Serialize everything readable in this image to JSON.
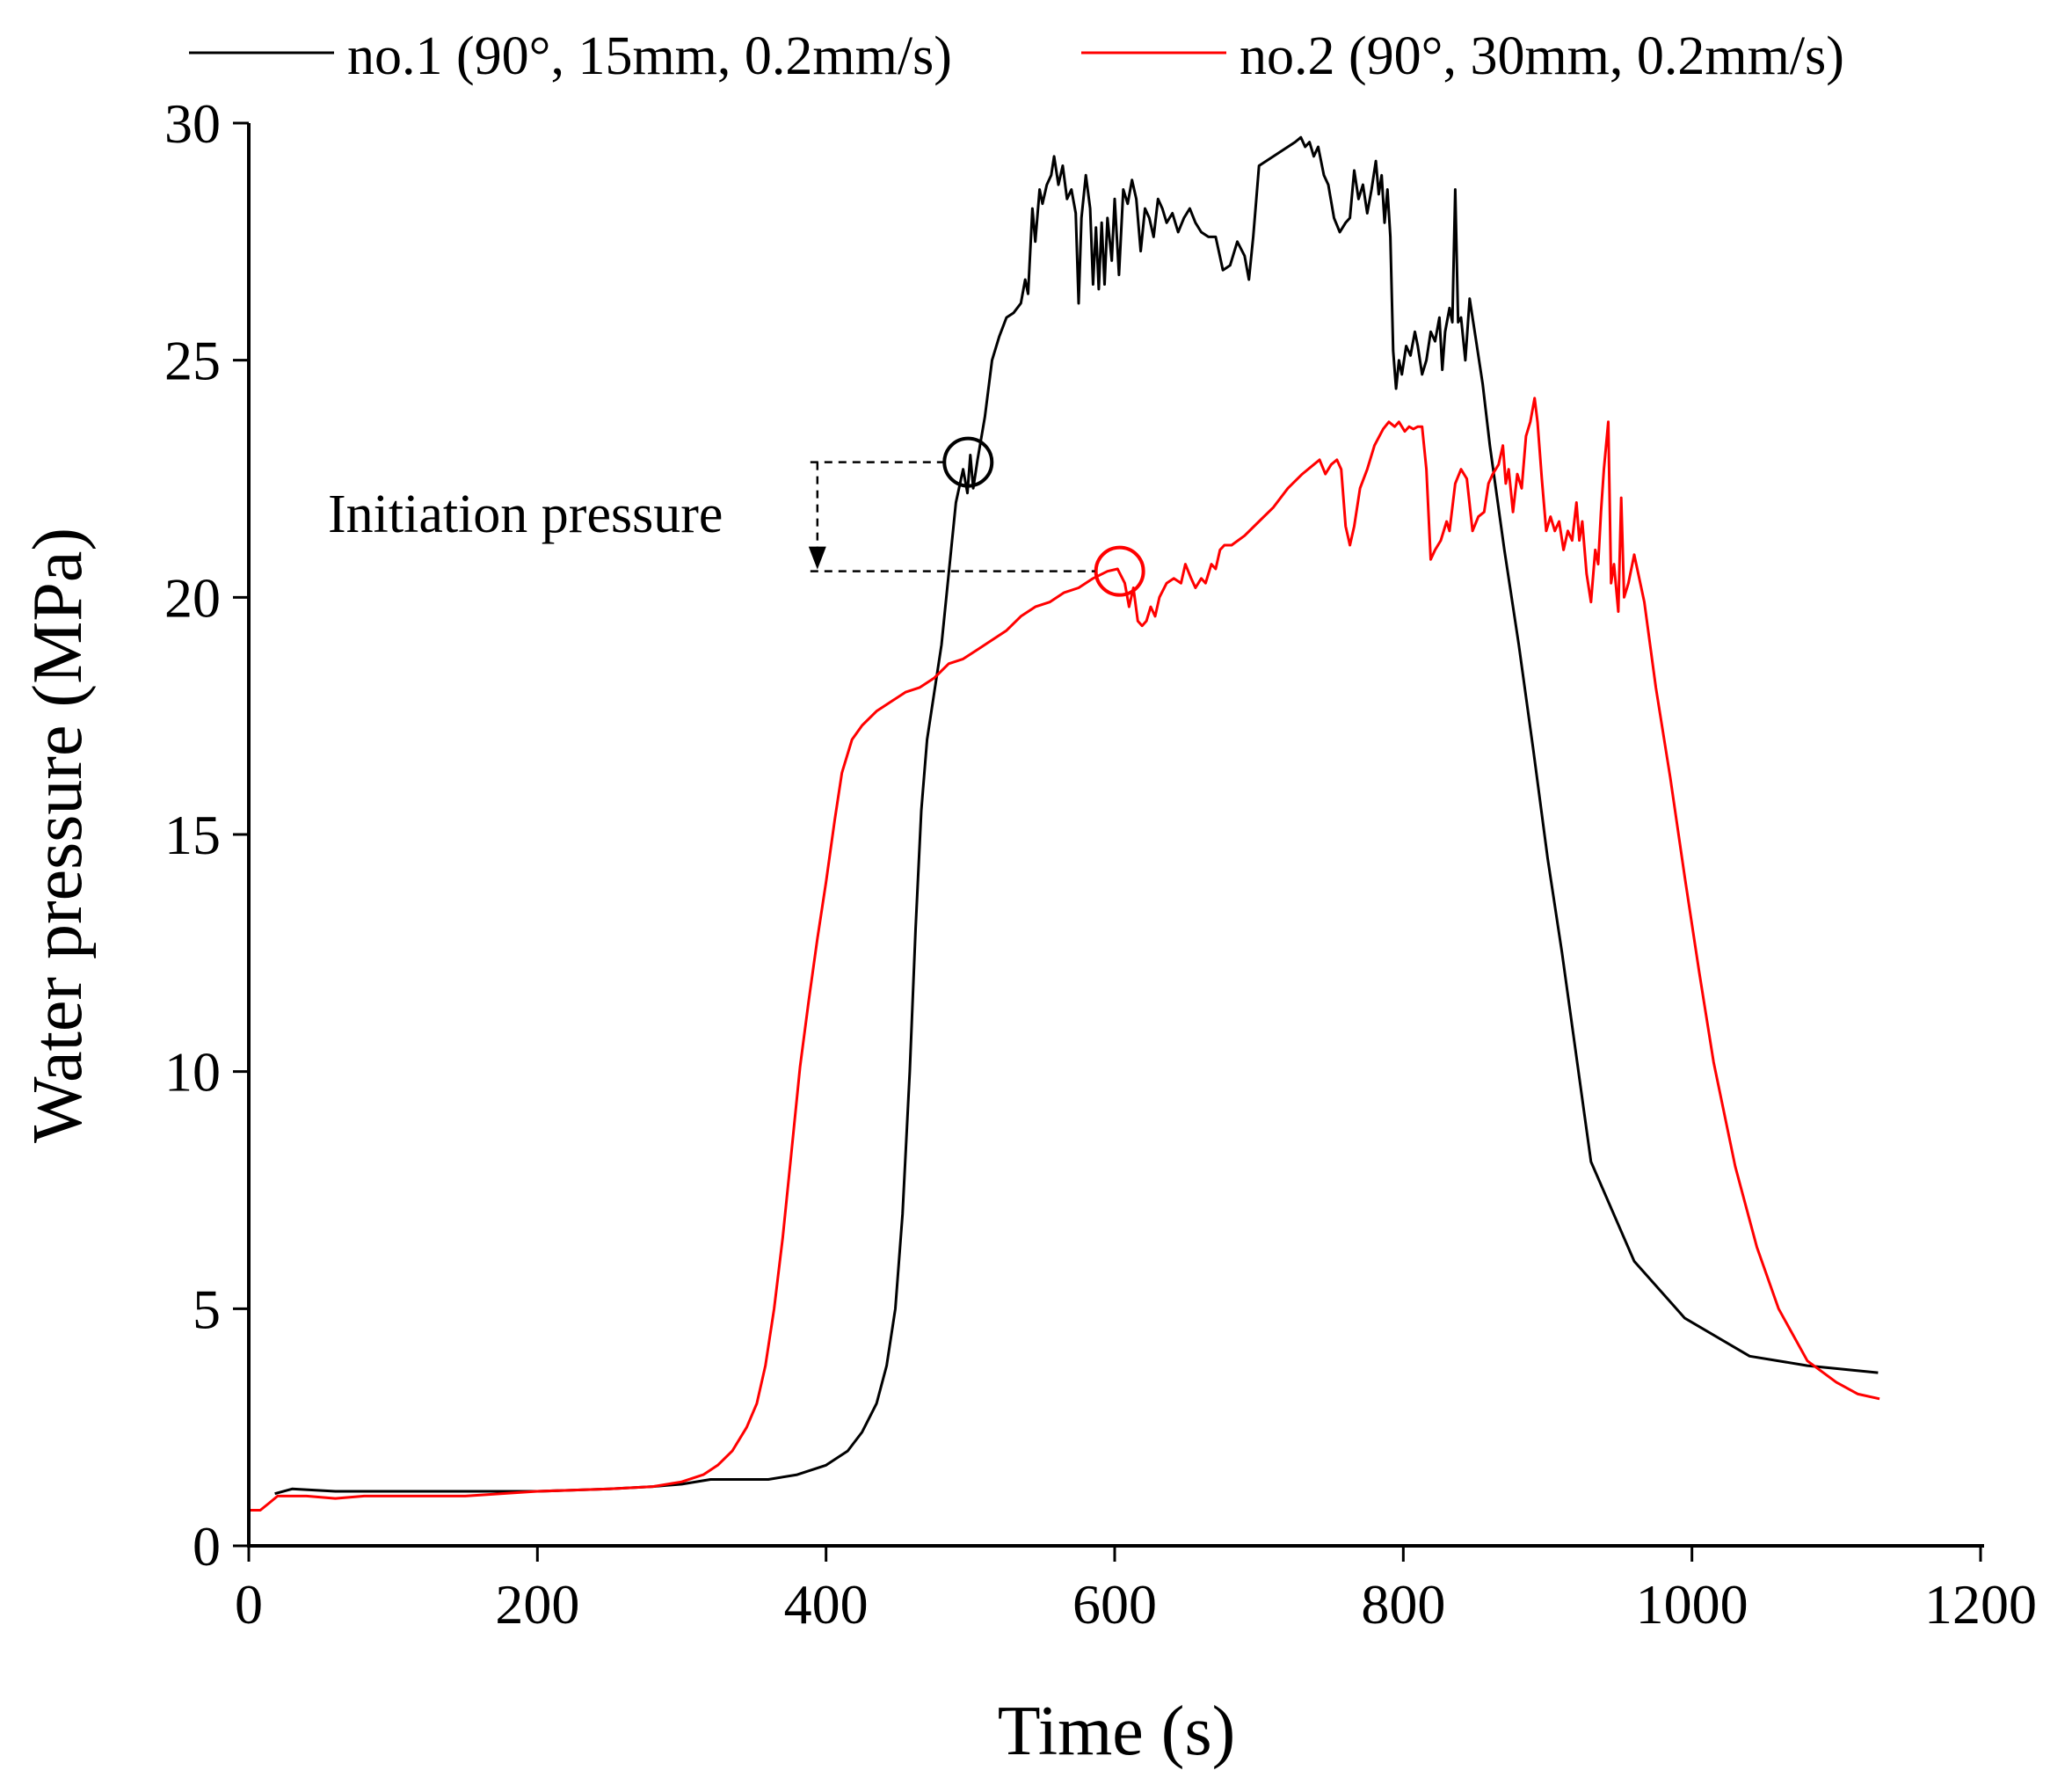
{
  "chart_data": {
    "type": "line",
    "title": "",
    "xlabel": "Time (s)",
    "ylabel": "Water pressure (MPa)",
    "xlim": [
      0,
      1200
    ],
    "ylim": [
      0,
      30
    ],
    "xticks": [
      0,
      200,
      400,
      600,
      800,
      1000,
      1200
    ],
    "yticks": [
      0,
      5,
      10,
      15,
      20,
      25,
      30
    ],
    "legend_position": "top",
    "annotation": {
      "text": "Initiation pressure",
      "from_value": 22.85,
      "to_value": 20.55,
      "markers": [
        {
          "series": "no.1 (90°, 15mm, 0.2mm/s)",
          "x": 496,
          "y": 22.85
        },
        {
          "series": "no.2 (90°, 30mm, 0.2mm/s)",
          "x": 601,
          "y": 20.55
        }
      ]
    },
    "series": [
      {
        "name": "no.1 (90°, 15mm, 0.2mm/s)",
        "color": "#000000",
        "points": [
          [
            18,
            1.1
          ],
          [
            30,
            1.2
          ],
          [
            60,
            1.15
          ],
          [
            100,
            1.15
          ],
          [
            150,
            1.15
          ],
          [
            200,
            1.15
          ],
          [
            250,
            1.2
          ],
          [
            280,
            1.25
          ],
          [
            300,
            1.3
          ],
          [
            320,
            1.4
          ],
          [
            340,
            1.4
          ],
          [
            360,
            1.4
          ],
          [
            380,
            1.5
          ],
          [
            400,
            1.7
          ],
          [
            415,
            2.0
          ],
          [
            425,
            2.4
          ],
          [
            435,
            3.0
          ],
          [
            442,
            3.8
          ],
          [
            448,
            5.0
          ],
          [
            453,
            7.0
          ],
          [
            458,
            10.0
          ],
          [
            462,
            13.0
          ],
          [
            466,
            15.5
          ],
          [
            470,
            17.0
          ],
          [
            475,
            18.0
          ],
          [
            480,
            19.0
          ],
          [
            485,
            20.5
          ],
          [
            490,
            22.0
          ],
          [
            495,
            22.7
          ],
          [
            498,
            22.2
          ],
          [
            500,
            23.0
          ],
          [
            502,
            22.3
          ],
          [
            505,
            22.9
          ],
          [
            510,
            23.8
          ],
          [
            515,
            25.0
          ],
          [
            520,
            25.5
          ],
          [
            525,
            25.9
          ],
          [
            530,
            26.0
          ],
          [
            535,
            26.2
          ],
          [
            538,
            26.7
          ],
          [
            540,
            26.4
          ],
          [
            543,
            28.2
          ],
          [
            545,
            27.5
          ],
          [
            548,
            28.6
          ],
          [
            550,
            28.3
          ],
          [
            553,
            28.7
          ],
          [
            556,
            28.9
          ],
          [
            558,
            29.3
          ],
          [
            561,
            28.7
          ],
          [
            564,
            29.1
          ],
          [
            567,
            28.4
          ],
          [
            570,
            28.6
          ],
          [
            573,
            28.1
          ],
          [
            575,
            26.2
          ],
          [
            577,
            28.0
          ],
          [
            580,
            28.9
          ],
          [
            583,
            28.2
          ],
          [
            585,
            26.6
          ],
          [
            587,
            27.8
          ],
          [
            589,
            26.5
          ],
          [
            591,
            27.9
          ],
          [
            593,
            26.6
          ],
          [
            595,
            28.0
          ],
          [
            598,
            27.1
          ],
          [
            600,
            28.4
          ],
          [
            603,
            26.8
          ],
          [
            606,
            28.6
          ],
          [
            609,
            28.3
          ],
          [
            612,
            28.8
          ],
          [
            615,
            28.4
          ],
          [
            618,
            27.3
          ],
          [
            621,
            28.2
          ],
          [
            624,
            28.0
          ],
          [
            627,
            27.6
          ],
          [
            630,
            28.4
          ],
          [
            633,
            28.2
          ],
          [
            636,
            27.9
          ],
          [
            640,
            28.1
          ],
          [
            644,
            27.7
          ],
          [
            648,
            28.0
          ],
          [
            652,
            28.2
          ],
          [
            656,
            27.9
          ],
          [
            660,
            27.7
          ],
          [
            665,
            27.6
          ],
          [
            670,
            27.6
          ],
          [
            675,
            26.9
          ],
          [
            680,
            27.0
          ],
          [
            685,
            27.5
          ],
          [
            690,
            27.2
          ],
          [
            693,
            26.7
          ],
          [
            696,
            27.6
          ],
          [
            700,
            29.1
          ],
          [
            705,
            29.2
          ],
          [
            710,
            29.3
          ],
          [
            715,
            29.4
          ],
          [
            720,
            29.5
          ],
          [
            725,
            29.6
          ],
          [
            729,
            29.7
          ],
          [
            732,
            29.5
          ],
          [
            735,
            29.6
          ],
          [
            738,
            29.3
          ],
          [
            741,
            29.5
          ],
          [
            745,
            28.9
          ],
          [
            748,
            28.7
          ],
          [
            752,
            28.0
          ],
          [
            756,
            27.7
          ],
          [
            760,
            27.9
          ],
          [
            763,
            28.0
          ],
          [
            766,
            29.0
          ],
          [
            769,
            28.4
          ],
          [
            772,
            28.7
          ],
          [
            775,
            28.1
          ],
          [
            778,
            28.6
          ],
          [
            781,
            29.2
          ],
          [
            783,
            28.5
          ],
          [
            785,
            28.9
          ],
          [
            787,
            27.9
          ],
          [
            789,
            28.6
          ],
          [
            791,
            27.6
          ],
          [
            793,
            25.2
          ],
          [
            795,
            24.4
          ],
          [
            797,
            25.0
          ],
          [
            799,
            24.7
          ],
          [
            802,
            25.3
          ],
          [
            805,
            25.1
          ],
          [
            808,
            25.6
          ],
          [
            810,
            25.3
          ],
          [
            813,
            24.7
          ],
          [
            816,
            25.0
          ],
          [
            819,
            25.6
          ],
          [
            822,
            25.4
          ],
          [
            825,
            25.9
          ],
          [
            827,
            24.8
          ],
          [
            829,
            25.6
          ],
          [
            832,
            26.1
          ],
          [
            834,
            25.8
          ],
          [
            836,
            28.6
          ],
          [
            838,
            25.8
          ],
          [
            840,
            25.9
          ],
          [
            843,
            25.0
          ],
          [
            846,
            26.3
          ],
          [
            850,
            25.5
          ],
          [
            855,
            24.5
          ],
          [
            860,
            23.2
          ],
          [
            870,
            21.0
          ],
          [
            880,
            19.0
          ],
          [
            890,
            16.8
          ],
          [
            900,
            14.5
          ],
          [
            910,
            12.5
          ],
          [
            930,
            8.1
          ],
          [
            960,
            6.0
          ],
          [
            995,
            4.8
          ],
          [
            1040,
            4.0
          ],
          [
            1080,
            3.8
          ],
          [
            1129,
            3.65
          ]
        ]
      },
      {
        "name": "no.2 (90°, 30mm, 0.2mm/s)",
        "color": "#ff0000",
        "points": [
          [
            0,
            0.75
          ],
          [
            8,
            0.75
          ],
          [
            14,
            0.9
          ],
          [
            20,
            1.05
          ],
          [
            40,
            1.05
          ],
          [
            60,
            1.0
          ],
          [
            80,
            1.05
          ],
          [
            100,
            1.05
          ],
          [
            150,
            1.05
          ],
          [
            200,
            1.15
          ],
          [
            250,
            1.2
          ],
          [
            280,
            1.25
          ],
          [
            300,
            1.35
          ],
          [
            315,
            1.5
          ],
          [
            325,
            1.7
          ],
          [
            335,
            2.0
          ],
          [
            345,
            2.5
          ],
          [
            352,
            3.0
          ],
          [
            358,
            3.8
          ],
          [
            364,
            5.0
          ],
          [
            370,
            6.5
          ],
          [
            376,
            8.3
          ],
          [
            382,
            10.1
          ],
          [
            388,
            11.5
          ],
          [
            394,
            12.8
          ],
          [
            400,
            14.0
          ],
          [
            406,
            15.3
          ],
          [
            411,
            16.3
          ],
          [
            418,
            17.0
          ],
          [
            425,
            17.3
          ],
          [
            435,
            17.6
          ],
          [
            445,
            17.8
          ],
          [
            455,
            18.0
          ],
          [
            465,
            18.1
          ],
          [
            475,
            18.3
          ],
          [
            485,
            18.6
          ],
          [
            495,
            18.7
          ],
          [
            505,
            18.9
          ],
          [
            515,
            19.1
          ],
          [
            525,
            19.3
          ],
          [
            535,
            19.6
          ],
          [
            545,
            19.8
          ],
          [
            555,
            19.9
          ],
          [
            565,
            20.1
          ],
          [
            575,
            20.2
          ],
          [
            585,
            20.4
          ],
          [
            595,
            20.55
          ],
          [
            602,
            20.6
          ],
          [
            607,
            20.3
          ],
          [
            610,
            19.8
          ],
          [
            613,
            20.2
          ],
          [
            616,
            19.5
          ],
          [
            619,
            19.4
          ],
          [
            622,
            19.5
          ],
          [
            625,
            19.8
          ],
          [
            628,
            19.6
          ],
          [
            631,
            20.0
          ],
          [
            636,
            20.3
          ],
          [
            641,
            20.4
          ],
          [
            646,
            20.3
          ],
          [
            649,
            20.7
          ],
          [
            653,
            20.4
          ],
          [
            656,
            20.2
          ],
          [
            660,
            20.4
          ],
          [
            663,
            20.3
          ],
          [
            667,
            20.7
          ],
          [
            670,
            20.6
          ],
          [
            673,
            21.0
          ],
          [
            676,
            21.1
          ],
          [
            681,
            21.1
          ],
          [
            690,
            21.3
          ],
          [
            700,
            21.6
          ],
          [
            710,
            21.9
          ],
          [
            720,
            22.3
          ],
          [
            730,
            22.6
          ],
          [
            738,
            22.8
          ],
          [
            742,
            22.9
          ],
          [
            746,
            22.6
          ],
          [
            750,
            22.8
          ],
          [
            754,
            22.9
          ],
          [
            757,
            22.7
          ],
          [
            760,
            21.5
          ],
          [
            763,
            21.1
          ],
          [
            766,
            21.5
          ],
          [
            770,
            22.3
          ],
          [
            775,
            22.7
          ],
          [
            780,
            23.2
          ],
          [
            786,
            23.55
          ],
          [
            790,
            23.7
          ],
          [
            794,
            23.6
          ],
          [
            797,
            23.7
          ],
          [
            801,
            23.5
          ],
          [
            804,
            23.6
          ],
          [
            807,
            23.55
          ],
          [
            810,
            23.6
          ],
          [
            813,
            23.6
          ],
          [
            816,
            22.7
          ],
          [
            819,
            20.8
          ],
          [
            822,
            21.0
          ],
          [
            826,
            21.2
          ],
          [
            830,
            21.6
          ],
          [
            832,
            21.4
          ],
          [
            836,
            22.4
          ],
          [
            840,
            22.7
          ],
          [
            844,
            22.5
          ],
          [
            848,
            21.4
          ],
          [
            852,
            21.7
          ],
          [
            856,
            21.8
          ],
          [
            859,
            22.4
          ],
          [
            862,
            22.6
          ],
          [
            866,
            22.8
          ],
          [
            869,
            23.2
          ],
          [
            871,
            22.4
          ],
          [
            873,
            22.7
          ],
          [
            876,
            21.8
          ],
          [
            879,
            22.6
          ],
          [
            882,
            22.3
          ],
          [
            885,
            23.4
          ],
          [
            888,
            23.7
          ],
          [
            891,
            24.2
          ],
          [
            893,
            23.7
          ],
          [
            896,
            22.5
          ],
          [
            899,
            21.4
          ],
          [
            902,
            21.7
          ],
          [
            905,
            21.4
          ],
          [
            908,
            21.6
          ],
          [
            911,
            21.0
          ],
          [
            914,
            21.4
          ],
          [
            917,
            21.2
          ],
          [
            920,
            22.0
          ],
          [
            922,
            21.2
          ],
          [
            924,
            21.6
          ],
          [
            927,
            20.5
          ],
          [
            930,
            19.9
          ],
          [
            933,
            21.0
          ],
          [
            935,
            20.7
          ],
          [
            937,
            21.8
          ],
          [
            939,
            22.7
          ],
          [
            942,
            23.7
          ],
          [
            944,
            20.3
          ],
          [
            946,
            20.7
          ],
          [
            949,
            19.7
          ],
          [
            951,
            22.1
          ],
          [
            953,
            20.0
          ],
          [
            956,
            20.3
          ],
          [
            960,
            20.9
          ],
          [
            967,
            19.9
          ],
          [
            975,
            18.1
          ],
          [
            985,
            16.2
          ],
          [
            995,
            14.1
          ],
          [
            1005,
            12.1
          ],
          [
            1015,
            10.2
          ],
          [
            1030,
            8.0
          ],
          [
            1045,
            6.3
          ],
          [
            1060,
            5.0
          ],
          [
            1080,
            3.9
          ],
          [
            1100,
            3.45
          ],
          [
            1115,
            3.2
          ],
          [
            1130,
            3.1
          ]
        ]
      }
    ]
  }
}
